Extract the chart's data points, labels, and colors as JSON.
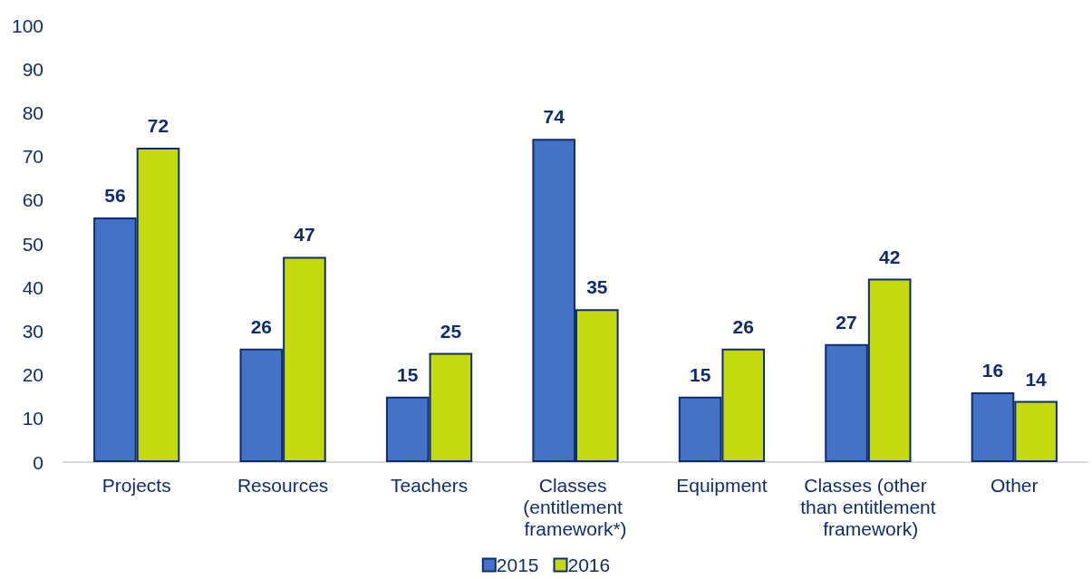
{
  "chart_data": {
    "type": "bar",
    "categories": [
      "Projects",
      "Resources",
      "Teachers",
      "Classes (entitlement framework*)",
      "Equipment",
      "Classes (other than entitlement framework)",
      "Other"
    ],
    "series": [
      {
        "name": "2015",
        "color": "#4472c4",
        "values": [
          56,
          26,
          15,
          74,
          15,
          27,
          16
        ]
      },
      {
        "name": "2016",
        "color": "#c5d90f",
        "values": [
          72,
          47,
          25,
          35,
          26,
          42,
          14
        ]
      }
    ],
    "ylim": [
      0,
      100
    ],
    "yticks": [
      0,
      10,
      20,
      30,
      40,
      50,
      60,
      70,
      80,
      90,
      100
    ],
    "data_labels": true,
    "legend": "bottom",
    "grid": false
  }
}
